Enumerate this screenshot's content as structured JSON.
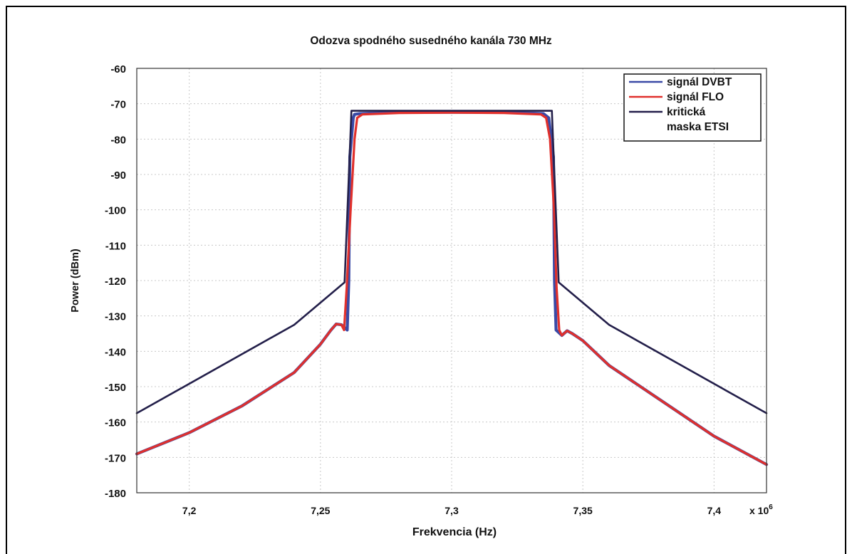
{
  "chart_data": {
    "type": "line",
    "title": "Odozva spodného susedného kanála 730 MHz",
    "xlabel": "Frekvencia (Hz)",
    "ylabel": "Power (dBm)",
    "x_multiplier_label": "x 10",
    "x_multiplier_exp": "6",
    "xlim": [
      7.18,
      7.42
    ],
    "ylim": [
      -180,
      -60
    ],
    "x_ticks": [
      7.2,
      7.25,
      7.3,
      7.35,
      7.4
    ],
    "x_tick_labels": [
      "7,2",
      "7,25",
      "7,3",
      "7,35",
      "7,4"
    ],
    "y_ticks": [
      -60,
      -70,
      -80,
      -90,
      -100,
      -110,
      -120,
      -130,
      -140,
      -150,
      -160,
      -170,
      -180
    ],
    "y_tick_labels": [
      "-60",
      "-70",
      "-80",
      "-90",
      "-100",
      "-110",
      "-120",
      "-130",
      "-140",
      "-150",
      "-160",
      "-170",
      "-180"
    ],
    "grid": true,
    "legend_position": "top-right",
    "series": [
      {
        "name": "signál DVBT",
        "color": "#3a4aa6",
        "x": [
          7.18,
          7.2,
          7.22,
          7.24,
          7.25,
          7.254,
          7.256,
          7.258,
          7.2602,
          7.2608,
          7.2612,
          7.2625,
          7.263,
          7.265,
          7.28,
          7.3,
          7.32,
          7.335,
          7.337,
          7.3388,
          7.3392,
          7.3398,
          7.342,
          7.344,
          7.346,
          7.35,
          7.36,
          7.38,
          7.4,
          7.42
        ],
        "y": [
          -169,
          -163,
          -155.5,
          -146,
          -138,
          -134,
          -132.3,
          -132.5,
          -134,
          -120,
          -85,
          -74,
          -73,
          -72.8,
          -72.4,
          -72.4,
          -72.4,
          -72.8,
          -74,
          -85,
          -120,
          -134,
          -135.5,
          -134.2,
          -135,
          -137,
          -144,
          -154,
          -164,
          -172
        ]
      },
      {
        "name": "signál FLO",
        "color": "#e0302c",
        "x": [
          7.18,
          7.2,
          7.22,
          7.24,
          7.25,
          7.254,
          7.256,
          7.258,
          7.259,
          7.26,
          7.2615,
          7.263,
          7.264,
          7.266,
          7.28,
          7.3,
          7.32,
          7.334,
          7.336,
          7.3375,
          7.339,
          7.34,
          7.341,
          7.342,
          7.344,
          7.346,
          7.35,
          7.36,
          7.38,
          7.4,
          7.42
        ],
        "y": [
          -169,
          -163,
          -155.5,
          -146,
          -138,
          -134,
          -132.3,
          -132.5,
          -134,
          -122,
          -100,
          -80,
          -74,
          -73,
          -72.6,
          -72.5,
          -72.6,
          -73,
          -74,
          -80,
          -100,
          -122,
          -134,
          -135.5,
          -134.2,
          -135,
          -137,
          -144,
          -154,
          -164,
          -172
        ]
      },
      {
        "name": "kritická maska ETSI",
        "color": "#231f4a",
        "x": [
          7.18,
          7.24,
          7.2592,
          7.2618,
          7.3382,
          7.3408,
          7.36,
          7.42
        ],
        "y": [
          -157.5,
          -132.5,
          -120.5,
          -72,
          -72,
          -120.5,
          -132.5,
          -157.5
        ]
      }
    ],
    "legend_labels": [
      {
        "text": "signál DVBT",
        "color": "#3a4aa6"
      },
      {
        "text": "signál FLO",
        "color": "#e0302c"
      },
      {
        "text": "kritická",
        "color": "#231f4a"
      },
      {
        "text": "maska ETSI",
        "color": ""
      }
    ]
  }
}
